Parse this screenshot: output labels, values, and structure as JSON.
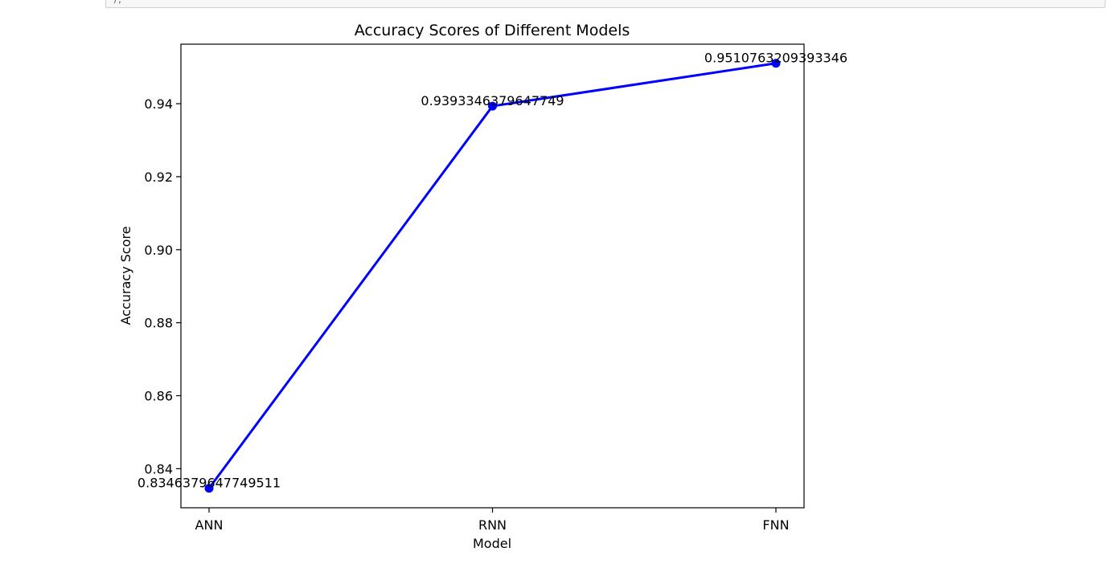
{
  "cell_fragment": "),",
  "chart_data": {
    "type": "line",
    "title": "Accuracy Scores of Different Models",
    "xlabel": "Model",
    "ylabel": "Accuracy Score",
    "categories": [
      "ANN",
      "RNN",
      "FNN"
    ],
    "series": [
      {
        "values": [
          0.8346379647749511,
          0.9393346379647749,
          0.9510763209393346
        ]
      }
    ],
    "data_labels": [
      "0.8346379647749511",
      "0.9393346379647749",
      "0.9510763209393346"
    ],
    "yticks": [
      "0.84",
      "0.86",
      "0.88",
      "0.90",
      "0.92",
      "0.94"
    ],
    "ylim": [
      0.8293,
      0.9563
    ],
    "grid": false,
    "line_color": "#0000ff",
    "marker": "circle"
  }
}
